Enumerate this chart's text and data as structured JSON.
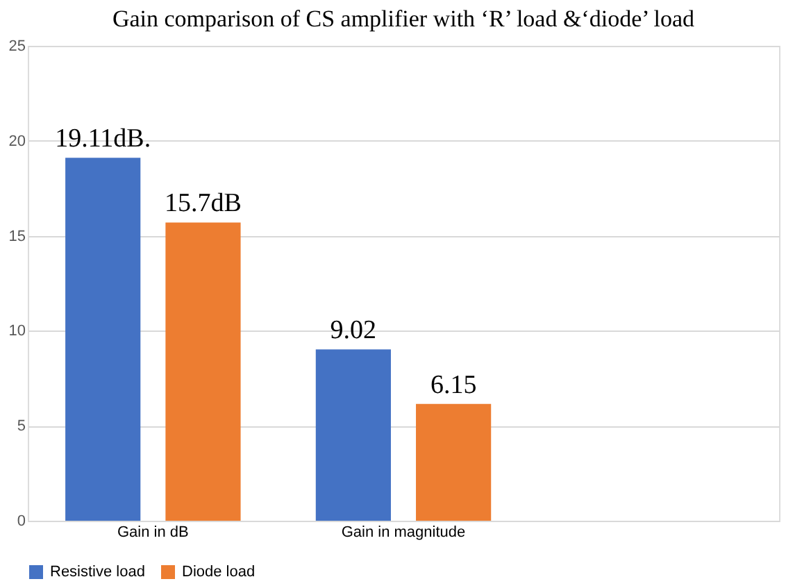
{
  "chart_data": {
    "type": "bar",
    "title": "Gain comparison of CS amplifier with ‘R’ load &‘diode’ load",
    "categories": [
      "Gain in dB",
      "Gain in magnitude",
      null
    ],
    "series": [
      {
        "name": "Resistive load",
        "color": "#4472c4",
        "values": [
          19.11,
          9.02,
          null
        ],
        "value_labels": [
          "19.11dB.",
          "9.02",
          null
        ]
      },
      {
        "name": "Diode load",
        "color": "#ed7d31",
        "values": [
          15.7,
          6.15,
          null
        ],
        "value_labels": [
          "15.7dB",
          "6.15",
          null
        ]
      }
    ],
    "ylim": [
      0,
      25
    ],
    "yticks": [
      0,
      5,
      10,
      15,
      20,
      25
    ],
    "grid": "y",
    "legend": "bottom"
  }
}
